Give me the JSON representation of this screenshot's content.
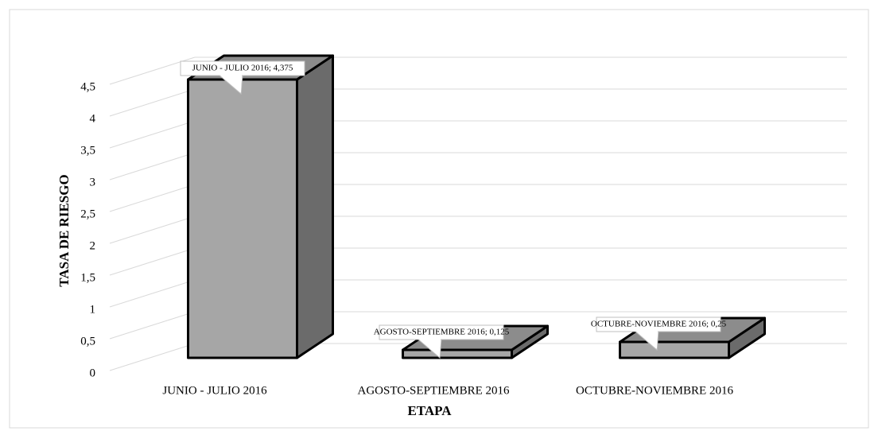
{
  "chart_data": {
    "type": "bar3d",
    "x_label": "ETAPA",
    "y_label": "TASA DE RIESGO",
    "categories": [
      "JUNIO - JULIO 2016",
      "AGOSTO-SEPTIEMBRE 2016",
      "OCTUBRE-NOVIEMBRE 2016"
    ],
    "values": [
      4.375,
      0.125,
      0.25
    ],
    "value_labels": [
      "JUNIO - JULIO 2016; 4,375",
      "AGOSTO-SEPTIEMBRE 2016; 0,125",
      "OCTUBRE-NOVIEMBRE 2016; 0,25"
    ],
    "color": "#a6a6a6",
    "ylim": [
      0,
      4.5
    ],
    "yticks": [
      0,
      {
        "value": 0.5,
        "label": "0,5"
      },
      1,
      {
        "value": 1.5,
        "label": "1,5"
      },
      2,
      {
        "value": 2.5,
        "label": "2,5"
      },
      3,
      {
        "value": 3.5,
        "label": "3,5"
      },
      4,
      {
        "value": 4.5,
        "label": "4,5"
      }
    ],
    "grid": true
  }
}
